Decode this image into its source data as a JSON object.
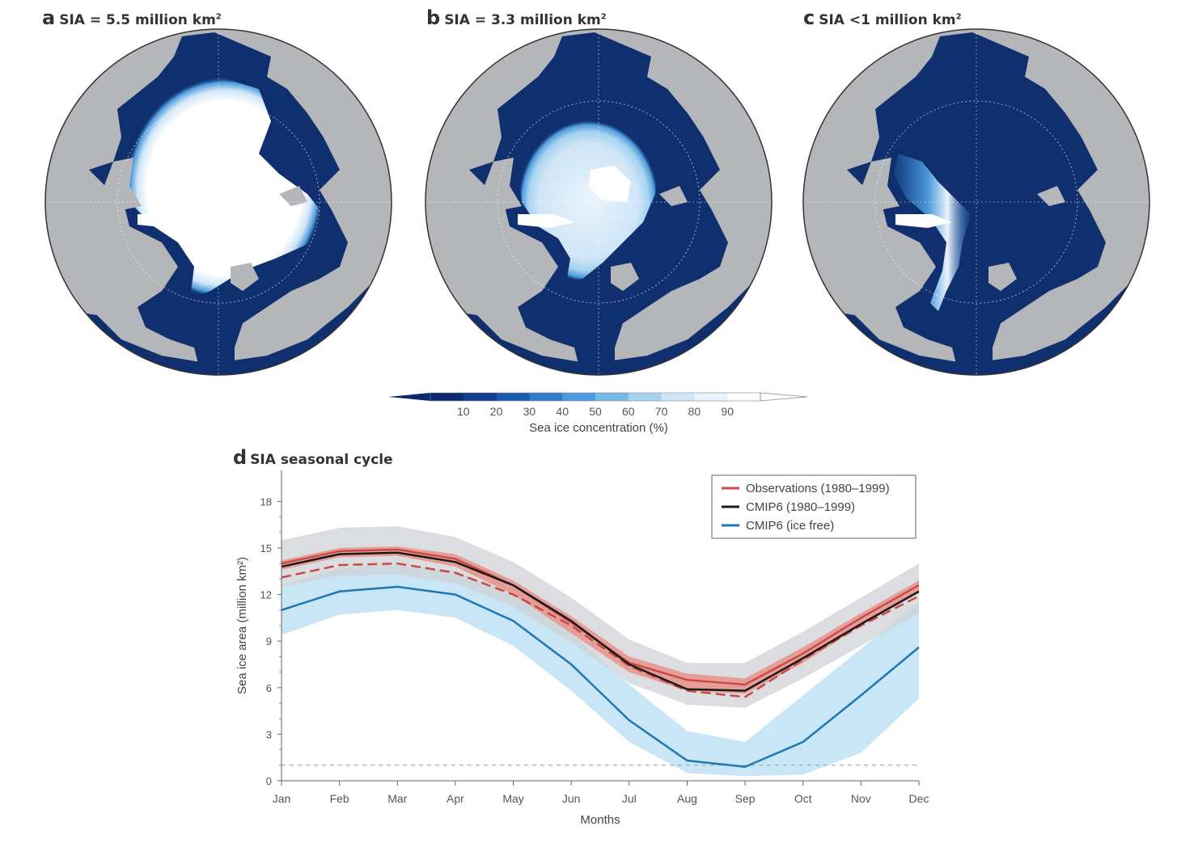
{
  "panels": [
    {
      "letter": "a",
      "title_pre": "SIA = 5.5 million km",
      "title_sup": "2"
    },
    {
      "letter": "b",
      "title_pre": "SIA = 3.3 million km",
      "title_sup": "2"
    },
    {
      "letter": "c",
      "title_pre": "SIA <1 million km",
      "title_sup": "2"
    }
  ],
  "colorbar": {
    "ticks": [
      "10",
      "20",
      "30",
      "40",
      "50",
      "60",
      "70",
      "80",
      "90"
    ],
    "label": "Sea ice concentration (%)",
    "colors": [
      "#0b2a6e",
      "#123d8c",
      "#1a5aae",
      "#2f7ccb",
      "#4d9bdc",
      "#78b9e8",
      "#a6d2f0",
      "#cfe6f7",
      "#e9f3fb",
      "#ffffff"
    ]
  },
  "colors": {
    "land": "#b4b6b9",
    "ocean": "#0f2f6e",
    "observations": "#c94a45",
    "cmip6_historical": "#1a1a1a",
    "cmip6_ice_free": "#1f78b4",
    "obs_band": "#e8928a",
    "hist_band": "#cfd2d6",
    "icefree_band": "#bfe2f6"
  },
  "chart_data": {
    "type": "line",
    "title_letter": "d",
    "title": "SIA seasonal cycle",
    "xlabel": "Months",
    "ylabel": "Sea ice area (million km²)",
    "categories": [
      "Jan",
      "Feb",
      "Mar",
      "Apr",
      "May",
      "Jun",
      "Jul",
      "Aug",
      "Sep",
      "Oct",
      "Nov",
      "Dec"
    ],
    "yticks": [
      "0",
      "3",
      "6",
      "9",
      "12",
      "15",
      "18"
    ],
    "ylim": [
      0,
      20
    ],
    "reference_line": 1,
    "legend_position": "top-right",
    "series": [
      {
        "name": "Observations (1980–1999)",
        "color": "#c94a45",
        "values": [
          14.0,
          14.8,
          14.9,
          14.3,
          12.6,
          10.2,
          7.6,
          6.5,
          6.2,
          8.2,
          10.5,
          12.6
        ],
        "band_low": [
          13.6,
          14.4,
          14.5,
          13.8,
          12.0,
          9.5,
          7.0,
          5.8,
          5.6,
          7.6,
          10.0,
          12.1
        ],
        "band_high": [
          14.2,
          15.0,
          15.1,
          14.6,
          12.9,
          10.6,
          8.0,
          6.9,
          6.6,
          8.6,
          10.8,
          12.9
        ]
      },
      {
        "name": "Observations (1980–1999) dashed",
        "color": "#c94a45",
        "values": [
          13.1,
          13.9,
          14.0,
          13.4,
          12.0,
          10.0,
          7.4,
          5.8,
          5.4,
          7.8,
          10.0,
          11.9
        ]
      },
      {
        "name": "CMIP6 (1980–1999)",
        "color": "#1a1a1a",
        "values": [
          13.8,
          14.6,
          14.7,
          14.1,
          12.6,
          10.3,
          7.5,
          5.9,
          5.8,
          7.9,
          10.1,
          12.2
        ],
        "band_low": [
          12.5,
          13.2,
          13.3,
          12.7,
          11.2,
          8.9,
          6.3,
          4.9,
          4.7,
          6.6,
          8.7,
          10.8
        ],
        "band_high": [
          15.5,
          16.3,
          16.4,
          15.7,
          14.1,
          11.8,
          9.1,
          7.6,
          7.6,
          9.6,
          11.8,
          14.0
        ]
      },
      {
        "name": "CMIP6 (ice free)",
        "color": "#1f78b4",
        "values": [
          11.0,
          12.2,
          12.5,
          12.0,
          10.3,
          7.5,
          3.9,
          1.3,
          0.9,
          2.5,
          5.5,
          8.6
        ],
        "band_low": [
          9.4,
          10.7,
          11.0,
          10.5,
          8.7,
          5.8,
          2.5,
          0.5,
          0.3,
          0.4,
          1.8,
          5.3
        ],
        "band_high": [
          12.6,
          13.7,
          14.0,
          13.5,
          12.0,
          9.5,
          6.2,
          3.2,
          2.5,
          5.5,
          8.5,
          11.5
        ]
      }
    ],
    "legend": [
      "Observations (1980–1999)",
      "CMIP6 (1980–1999)",
      "CMIP6 (ice free)"
    ]
  }
}
